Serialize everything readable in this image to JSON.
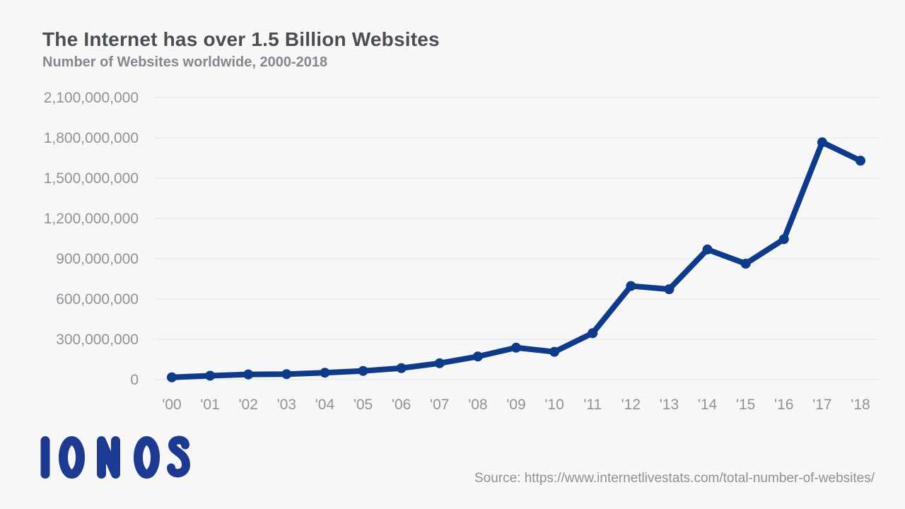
{
  "colors": {
    "background": "#f7f7f7",
    "title": "#4a4e53",
    "subtitle": "#84888d",
    "axis_label": "#8e9398",
    "gridline": "#e9eaec",
    "line": "#0c3b8e",
    "logo": "#1c3a94",
    "source": "#8d9196"
  },
  "chart_data": {
    "type": "line",
    "title": "The Internet has over 1.5 Billion Websites",
    "subtitle": "Number of Websites worldwide, 2000-2018",
    "x_labels": [
      "'00",
      "'01",
      "'02",
      "'03",
      "'04",
      "'05",
      "'06",
      "'07",
      "'08",
      "'09",
      "'10",
      "'11",
      "'12",
      "'13",
      "'14",
      "'15",
      "'16",
      "'17",
      "'18"
    ],
    "years": [
      2000,
      2001,
      2002,
      2003,
      2004,
      2005,
      2006,
      2007,
      2008,
      2009,
      2010,
      2011,
      2012,
      2013,
      2014,
      2015,
      2016,
      2017,
      2018
    ],
    "values": [
      17087182,
      29254370,
      38760373,
      40912332,
      51611646,
      64780617,
      85507314,
      121892559,
      172338726,
      238027855,
      206956723,
      346004403,
      697089489,
      672985183,
      968882453,
      863105652,
      1045534808,
      1766926408,
      1630000000
    ],
    "ylim": [
      0,
      2100000000
    ],
    "y_ticks": [
      0,
      300000000,
      600000000,
      900000000,
      1200000000,
      1500000000,
      1800000000,
      2100000000
    ],
    "y_tick_labels": [
      "0",
      "300,000,000",
      "600,000,000",
      "900,000,000",
      "1,200,000,000",
      "1,500,000,000",
      "1,800,000,000",
      "2,100,000,000"
    ],
    "grid": "horizontal",
    "legend": "none",
    "marker": "circle"
  },
  "footer": {
    "logo_text": "IONOS",
    "source": "Source: https://www.internetlivestats.com/total-number-of-websites/"
  }
}
